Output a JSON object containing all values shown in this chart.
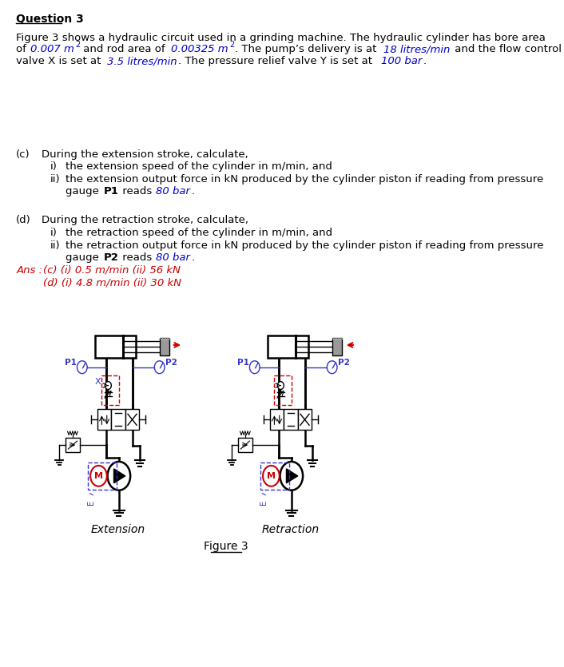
{
  "title": "Question 3",
  "bg_color": "#ffffff",
  "text_color": "#000000",
  "blue_color": "#0000cc",
  "red_color": "#cc0000",
  "fig_width": 7.06,
  "fig_height": 8.35,
  "body_text_1": "Figure 3 shows a hydraulic circuit used in a grinding machine. The hydraulic cylinder has bore area",
  "body_text_2_parts": [
    {
      "text": "of ",
      "style": "normal"
    },
    {
      "text": "0.007 m",
      "style": "italic_blue"
    },
    {
      "text": "2",
      "style": "super_blue"
    },
    {
      "text": " and rod area of ",
      "style": "normal"
    },
    {
      "text": "0.00325 m",
      "style": "italic_blue"
    },
    {
      "text": "2",
      "style": "super_blue"
    },
    {
      "text": ". The pump’s delivery is at ",
      "style": "normal"
    },
    {
      "text": "18 litres/min",
      "style": "italic_blue"
    },
    {
      "text": " and the flow control",
      "style": "normal"
    }
  ],
  "body_text_3_parts": [
    {
      "text": "valve X is set at ",
      "style": "normal"
    },
    {
      "text": "3.5 litres/min",
      "style": "italic_blue"
    },
    {
      "text": ". The pressure relief valve Y is set at ",
      "style": "normal"
    },
    {
      "text": "100 bar",
      "style": "italic_blue"
    },
    {
      "text": ".",
      "style": "normal"
    }
  ],
  "c_label": "(c)",
  "c_text": "During the extension stroke, calculate,",
  "c_i": "the extension speed of the cylinder in m/min, and",
  "c_ii_1": "the extension output force in kN produced by the cylinder piston if reading from pressure",
  "c_ii_2_parts": [
    {
      "text": "gauge ",
      "style": "normal"
    },
    {
      "text": "P1",
      "style": "bold"
    },
    {
      "text": " reads ",
      "style": "normal"
    },
    {
      "text": "80 bar",
      "style": "italic_blue"
    },
    {
      "text": ".",
      "style": "normal"
    }
  ],
  "d_label": "(d)",
  "d_text": "During the retraction stroke, calculate,",
  "d_i": "the retraction speed of the cylinder in m/min, and",
  "d_ii_1": "the retraction output force in kN produced by the cylinder piston if reading from pressure",
  "d_ii_2_parts": [
    {
      "text": "gauge ",
      "style": "normal"
    },
    {
      "text": "P2",
      "style": "bold"
    },
    {
      "text": " reads ",
      "style": "normal"
    },
    {
      "text": "80 bar",
      "style": "italic_blue"
    },
    {
      "text": ".",
      "style": "normal"
    }
  ],
  "ans_label": "Ans :",
  "ans_line1": "(c) (i) 0.5 m/min (ii) 56 kN",
  "ans_line2": "(d) (i) 4.8 m/min (ii) 30 kN",
  "fig_caption": "Figure 3",
  "ext_label": "Extension",
  "ret_label": "Retraction"
}
